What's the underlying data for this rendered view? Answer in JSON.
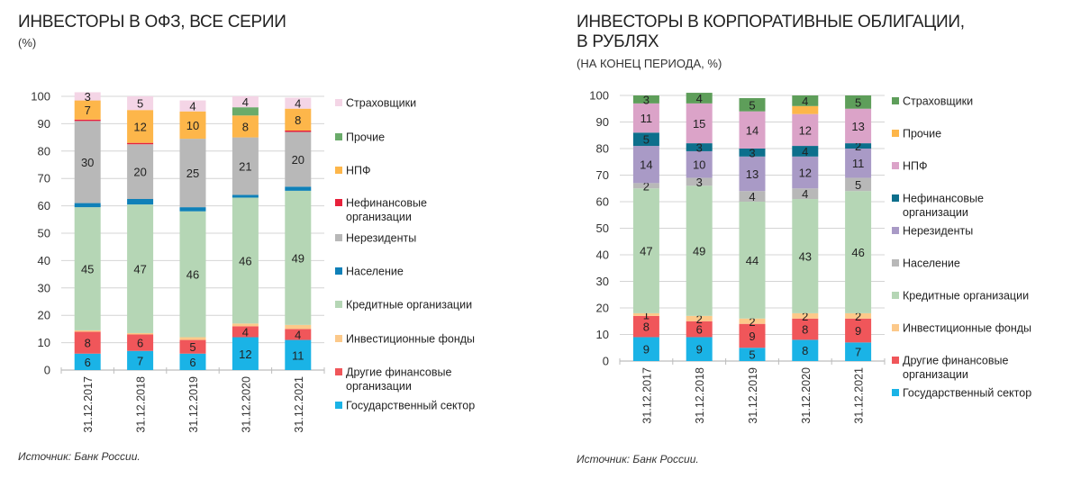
{
  "chart_data": [
    {
      "type": "bar",
      "stacked": true,
      "title": "ИНВЕСТОРЫ В ОФЗ, ВСЕ СЕРИИ",
      "subtitle": "(%)",
      "source": "Источник: Банк России.",
      "xlabel": "",
      "ylabel": "",
      "ylim": [
        0,
        100
      ],
      "yticks": [
        0,
        10,
        20,
        30,
        40,
        50,
        60,
        70,
        80,
        90,
        100
      ],
      "grid": true,
      "legend_position": "right",
      "categories": [
        "31.12.2017",
        "31.12.2018",
        "31.12.2019",
        "31.12.2020",
        "31.12.2021"
      ],
      "series": [
        {
          "name": "Государственный сектор",
          "color": "#1ab3e6",
          "values": [
            6,
            7,
            6,
            12,
            11
          ],
          "labels": [
            "6",
            "7",
            "6",
            "12",
            "11"
          ]
        },
        {
          "name": "Другие финансовые организации",
          "color": "#f0565a",
          "values": [
            8,
            6,
            5,
            4,
            4
          ],
          "labels": [
            "8",
            "6",
            "5",
            "4",
            "4"
          ]
        },
        {
          "name": "Инвестиционные фонды",
          "color": "#fcc98a",
          "values": [
            0.5,
            0.5,
            1,
            1,
            1.5
          ],
          "labels": [
            "",
            "",
            "",
            "",
            ""
          ]
        },
        {
          "name": "Кредитные организации",
          "color": "#b5d6b5",
          "values": [
            45,
            47,
            46,
            46,
            49
          ],
          "labels": [
            "45",
            "47",
            "46",
            "46",
            "49"
          ]
        },
        {
          "name": "Население",
          "color": "#0f80b8",
          "values": [
            1.5,
            2,
            1.5,
            1,
            1.5
          ],
          "labels": [
            "",
            "",
            "",
            "",
            ""
          ]
        },
        {
          "name": "Нерезиденты",
          "color": "#b8b8b8",
          "values": [
            30,
            20,
            25,
            21,
            20
          ],
          "labels": [
            "30",
            "20",
            "25",
            "21",
            "20"
          ]
        },
        {
          "name": "Нефинансовые организации",
          "color": "#e8213b",
          "values": [
            0.5,
            0.5,
            0,
            0,
            0.5
          ],
          "labels": [
            "",
            "",
            "",
            "",
            ""
          ]
        },
        {
          "name": "НПФ",
          "color": "#fdb64a",
          "values": [
            7,
            12,
            10,
            8,
            8
          ],
          "labels": [
            "7",
            "12",
            "10",
            "8",
            "8"
          ]
        },
        {
          "name": "Прочие",
          "color": "#6aab6a",
          "values": [
            0,
            0,
            0,
            3,
            0
          ],
          "labels": [
            "",
            "",
            "",
            "",
            ""
          ]
        },
        {
          "name": "Страховщики",
          "color": "#f4d5e6",
          "values": [
            3,
            5,
            4,
            4,
            4
          ],
          "labels": [
            "3",
            "5",
            "4",
            "4",
            "4"
          ]
        }
      ],
      "legend_order": [
        "Страховщики",
        "Прочие",
        "НПФ",
        "Нефинансовые организации",
        "Нерезиденты",
        "Население",
        "Кредитные организации",
        "Инвестиционные фонды",
        "Другие финансовые организации",
        "Государственный сектор"
      ]
    },
    {
      "type": "bar",
      "stacked": true,
      "title": "ИНВЕСТОРЫ В КОРПОРАТИВНЫЕ ОБЛИГАЦИИ, В РУБЛЯХ",
      "subtitle": "(НА КОНЕЦ ПЕРИОДА, %)",
      "source": "Источник: Банк России.",
      "xlabel": "",
      "ylabel": "",
      "ylim": [
        0,
        100
      ],
      "yticks": [
        0,
        10,
        20,
        30,
        40,
        50,
        60,
        70,
        80,
        90,
        100
      ],
      "grid": true,
      "legend_position": "right",
      "categories": [
        "31.12.2017",
        "31.12.2018",
        "31.12.2019",
        "31.12.2020",
        "31.12.2021"
      ],
      "series": [
        {
          "name": "Государственный сектор",
          "color": "#1ab3e6",
          "values": [
            9,
            9,
            5,
            8,
            7
          ],
          "labels": [
            "9",
            "9",
            "5",
            "8",
            "7"
          ],
          "label_color": "#222"
        },
        {
          "name": "Другие финансовые организации",
          "color": "#f0565a",
          "values": [
            8,
            6,
            9,
            8,
            9
          ],
          "labels": [
            "8",
            "6",
            "9",
            "8",
            "9"
          ],
          "label_color": "#222"
        },
        {
          "name": "Инвестиционные фонды",
          "color": "#fcc98a",
          "values": [
            1,
            2,
            2,
            2,
            2
          ],
          "labels": [
            "1",
            "2",
            "2",
            "2",
            "2"
          ],
          "label_color": "#222"
        },
        {
          "name": "Кредитные организации",
          "color": "#b5d6b5",
          "values": [
            47,
            49,
            44,
            43,
            46
          ],
          "labels": [
            "47",
            "49",
            "44",
            "43",
            "46"
          ],
          "label_color": "#222"
        },
        {
          "name": "Население",
          "color": "#b8b8b8",
          "values": [
            2,
            3,
            4,
            4,
            5
          ],
          "labels": [
            "2",
            "3",
            "4",
            "4",
            "5"
          ],
          "label_color": "#222"
        },
        {
          "name": "Нерезиденты",
          "color": "#a99ac6",
          "values": [
            14,
            10,
            13,
            12,
            11
          ],
          "labels": [
            "14",
            "10",
            "13",
            "12",
            "11"
          ],
          "label_color": "#222"
        },
        {
          "name": "Нефинансовые организации",
          "color": "#0d6f8c",
          "values": [
            5,
            3,
            3,
            4,
            2
          ],
          "labels": [
            "5",
            "3",
            "3",
            "4",
            "2"
          ],
          "label_color": "#ffffff"
        },
        {
          "name": "НПФ",
          "color": "#dba3c8",
          "values": [
            11,
            15,
            14,
            12,
            13
          ],
          "labels": [
            "11",
            "15",
            "14",
            "12",
            "13"
          ],
          "label_color": "#222"
        },
        {
          "name": "Прочие",
          "color": "#fdb64a",
          "values": [
            0,
            0,
            0,
            3,
            0
          ],
          "labels": [
            "",
            "",
            "",
            "",
            ""
          ],
          "label_color": "#222"
        },
        {
          "name": "Страховщики",
          "color": "#5e9e5a",
          "values": [
            3,
            4,
            5,
            4,
            5
          ],
          "labels": [
            "3",
            "4",
            "5",
            "4",
            "5"
          ],
          "label_color": "#ffffff"
        }
      ],
      "legend_order": [
        "Страховщики",
        "Прочие",
        "НПФ",
        "Нефинансовые организации",
        "Нерезиденты",
        "Население",
        "Кредитные организации",
        "Инвестиционные фонды",
        "Другие финансовые организации",
        "Государственный сектор"
      ]
    }
  ],
  "left": {
    "title": "ИНВЕСТОРЫ В ОФЗ, ВСЕ СЕРИИ",
    "subtitle": "(%)",
    "source": "Источник: Банк России."
  },
  "right": {
    "title_line1": "ИНВЕСТОРЫ В КОРПОРАТИВНЫЕ ОБЛИГАЦИИ,",
    "title_line2": "В РУБЛЯХ",
    "subtitle": "(НА КОНЕЦ ПЕРИОДА, %)",
    "source": "Источник: Банк России."
  }
}
